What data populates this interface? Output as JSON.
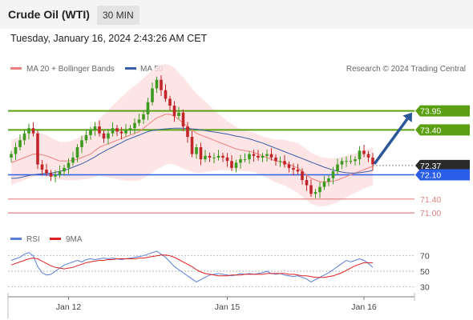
{
  "header": {
    "title": "Crude Oil (WTI)",
    "interval": "30 MIN",
    "datetime": "Tuesday, January 16, 2024 2:43:26 AM CET"
  },
  "legend": {
    "ma20_label": "MA 20 + Bollinger Bands",
    "ma50_label": "MA 50",
    "credit": "Research © 2024 Trading Central",
    "rsi_label": "RSI",
    "rsi_ma_label": "9MA"
  },
  "colors": {
    "ma20": "#f08080",
    "ma50": "#3a5fa8",
    "bollinger_fill": "#fde0e0",
    "candle_up": "#3c9a1e",
    "candle_down": "#c0252a",
    "resistance": "#5aa012",
    "support": "#2b5ee8",
    "support_lines": "#e08080",
    "arrow": "#2b5797",
    "rsi": "#5a7fd8",
    "rsi_ma": "#dd2222"
  },
  "chart_data": [
    {
      "type": "candlestick",
      "x_ticks": [
        "Jan 12",
        "Jan 15",
        "Jan 16"
      ],
      "ylim": [
        70.77,
        74.89
      ],
      "levels": [
        {
          "value": 73.95,
          "label": "73.95",
          "kind": "resistance"
        },
        {
          "value": 73.4,
          "label": "73.40",
          "kind": "resistance"
        },
        {
          "value": 72.37,
          "label": "72.37",
          "kind": "last"
        },
        {
          "value": 72.1,
          "label": "72.10",
          "kind": "pivot"
        },
        {
          "value": 71.4,
          "label": "71.40",
          "kind": "support"
        },
        {
          "value": 71.0,
          "label": "71.00",
          "kind": "support"
        }
      ],
      "closes": [
        72.7,
        72.9,
        73.1,
        73.3,
        73.45,
        73.3,
        72.4,
        72.25,
        72.15,
        72.05,
        72.1,
        72.2,
        72.3,
        72.45,
        72.6,
        72.9,
        73.1,
        73.25,
        73.4,
        73.5,
        73.3,
        73.15,
        73.3,
        73.45,
        73.35,
        73.3,
        73.4,
        73.45,
        73.6,
        73.7,
        73.85,
        74.2,
        74.6,
        74.85,
        74.55,
        74.3,
        74.1,
        73.8,
        73.9,
        73.5,
        73.2,
        72.7,
        72.9,
        72.55,
        72.65,
        72.6,
        72.6,
        72.65,
        72.6,
        72.5,
        72.3,
        72.45,
        72.55,
        72.55,
        72.7,
        72.65,
        72.6,
        72.65,
        72.7,
        72.6,
        72.5,
        72.5,
        72.4,
        72.3,
        72.25,
        72.2,
        71.95,
        71.8,
        71.55,
        71.6,
        71.75,
        71.9,
        72.0,
        72.2,
        72.4,
        72.5,
        72.5,
        72.5,
        72.55,
        72.8,
        72.7,
        72.6,
        72.4
      ],
      "ma20": [
        72.45,
        72.5,
        72.55,
        72.6,
        72.65,
        72.7,
        72.7,
        72.68,
        72.65,
        72.6,
        72.55,
        72.5,
        72.5,
        72.5,
        72.52,
        72.55,
        72.6,
        72.65,
        72.7,
        72.8,
        72.9,
        72.95,
        73.0,
        73.05,
        73.1,
        73.15,
        73.2,
        73.25,
        73.3,
        73.35,
        73.45,
        73.55,
        73.65,
        73.75,
        73.8,
        73.85,
        73.85,
        73.8,
        73.7,
        73.6,
        73.5,
        73.4,
        73.3,
        73.25,
        73.2,
        73.15,
        73.1,
        73.05,
        73.0,
        72.95,
        72.9,
        72.85,
        72.82,
        72.8,
        72.78,
        72.75,
        72.7,
        72.65,
        72.6,
        72.55,
        72.5,
        72.48,
        72.45,
        72.4,
        72.35,
        72.3,
        72.2,
        72.1,
        72.0,
        71.95,
        71.9,
        71.9,
        71.9,
        71.92,
        71.95,
        72.0,
        72.05,
        72.1,
        72.15,
        72.2,
        72.25,
        72.3,
        72.35
      ],
      "ma50": [
        72.0,
        72.0,
        72.02,
        72.05,
        72.08,
        72.1,
        72.12,
        72.13,
        72.14,
        72.15,
        72.17,
        72.2,
        72.23,
        72.27,
        72.32,
        72.37,
        72.42,
        72.48,
        72.55,
        72.62,
        72.7,
        72.77,
        72.84,
        72.9,
        72.97,
        73.03,
        73.1,
        73.15,
        73.2,
        73.25,
        73.3,
        73.35,
        73.38,
        73.4,
        73.42,
        73.43,
        73.44,
        73.45,
        73.45,
        73.45,
        73.44,
        73.43,
        73.42,
        73.4,
        73.38,
        73.36,
        73.34,
        73.32,
        73.3,
        73.28,
        73.25,
        73.22,
        73.2,
        73.17,
        73.14,
        73.1,
        73.06,
        73.02,
        72.97,
        72.92,
        72.87,
        72.82,
        72.77,
        72.72,
        72.67,
        72.62,
        72.57,
        72.52,
        72.47,
        72.42,
        72.37,
        72.32,
        72.28,
        72.24,
        72.21,
        72.18,
        72.16,
        72.15,
        72.15,
        72.16,
        72.18,
        72.2,
        72.23
      ],
      "bb_width": [
        0.65,
        0.65,
        0.65,
        0.65,
        0.65,
        0.65,
        0.63,
        0.62,
        0.6,
        0.58,
        0.56,
        0.55,
        0.55,
        0.56,
        0.58,
        0.6,
        0.63,
        0.67,
        0.7,
        0.75,
        0.82,
        0.9,
        0.97,
        1.05,
        1.12,
        1.2,
        1.27,
        1.33,
        1.38,
        1.42,
        1.45,
        1.47,
        1.48,
        1.49,
        1.48,
        1.46,
        1.43,
        1.4,
        1.36,
        1.32,
        1.27,
        1.21,
        1.15,
        1.09,
        1.02,
        0.95,
        0.88,
        0.82,
        0.76,
        0.71,
        0.67,
        0.64,
        0.61,
        0.59,
        0.58,
        0.57,
        0.57,
        0.57,
        0.58,
        0.6,
        0.62,
        0.64,
        0.66,
        0.68,
        0.7,
        0.72,
        0.73,
        0.74,
        0.74,
        0.73,
        0.72,
        0.7,
        0.68,
        0.66,
        0.64,
        0.62,
        0.6,
        0.58,
        0.57,
        0.56,
        0.55,
        0.55,
        0.55
      ],
      "forecast_arrow": {
        "from": 72.37,
        "to": 73.95
      }
    },
    {
      "type": "line",
      "series": [
        {
          "name": "RSI",
          "values": [
            64,
            66,
            68,
            72,
            74,
            70,
            56,
            48,
            45,
            46,
            50,
            54,
            58,
            60,
            62,
            64,
            62,
            65,
            66,
            65,
            66,
            67,
            66,
            67,
            66,
            65,
            66,
            67,
            68,
            69,
            70,
            72,
            74,
            76,
            72,
            68,
            62,
            56,
            52,
            48,
            44,
            40,
            36,
            39,
            42,
            45,
            46,
            47,
            46,
            45,
            44,
            45,
            47,
            46,
            47,
            46,
            47,
            48,
            50,
            47,
            46,
            47,
            45,
            44,
            43,
            44,
            42,
            40,
            36,
            39,
            42,
            45,
            48,
            52,
            56,
            60,
            64,
            62,
            64,
            66,
            64,
            60,
            55
          ]
        },
        {
          "name": "9MA",
          "values": [
            58,
            60,
            62,
            64,
            66,
            67,
            66,
            63,
            60,
            57,
            55,
            54,
            53,
            54,
            55,
            57,
            59,
            61,
            62,
            63,
            64,
            64,
            65,
            65,
            66,
            66,
            66,
            66,
            66,
            67,
            67,
            68,
            69,
            70,
            71,
            71,
            70,
            68,
            65,
            62,
            59,
            56,
            52,
            49,
            47,
            46,
            45,
            44,
            44,
            44,
            45,
            45,
            45,
            46,
            46,
            46,
            46,
            46,
            47,
            47,
            47,
            47,
            47,
            46,
            46,
            45,
            44,
            44,
            43,
            42,
            42,
            42,
            43,
            44,
            46,
            48,
            51,
            54,
            57,
            59,
            61,
            61,
            61
          ]
        }
      ],
      "y_ticks": [
        30,
        50,
        70
      ],
      "ylim": [
        20,
        80
      ]
    }
  ]
}
